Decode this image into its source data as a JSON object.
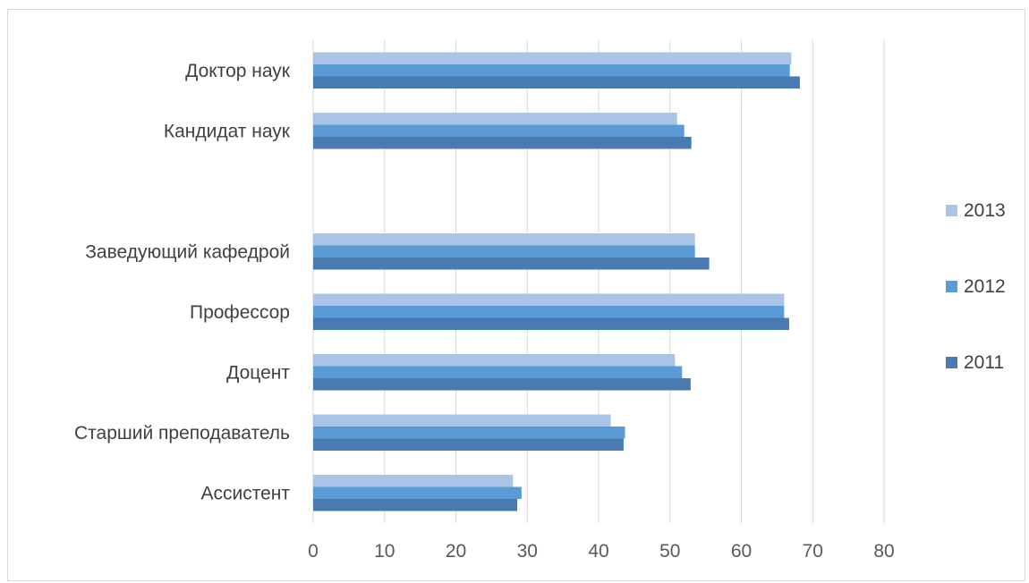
{
  "chart_data": {
    "type": "bar",
    "orientation": "horizontal",
    "categories": [
      "Доктор наук",
      "Кандидат наук",
      "",
      "Заведующий кафедрой",
      "Профессор",
      "Доцент",
      "Старший преподаватель",
      "Ассистент"
    ],
    "series": [
      {
        "name": "2013",
        "color": "#a9c4e4",
        "values": [
          67.0,
          51.0,
          null,
          53.5,
          66.0,
          50.7,
          41.7,
          28.0
        ]
      },
      {
        "name": "2012",
        "color": "#5b9bd5",
        "values": [
          66.8,
          52.0,
          null,
          53.5,
          66.0,
          51.7,
          43.7,
          29.2
        ]
      },
      {
        "name": "2011",
        "color": "#4a7ab2",
        "values": [
          68.2,
          53.0,
          null,
          55.5,
          66.7,
          52.9,
          43.5,
          28.6
        ]
      }
    ],
    "xlim": [
      0,
      80
    ],
    "x_ticks": [
      "0",
      "10",
      "20",
      "30",
      "40",
      "50",
      "60",
      "70",
      "80"
    ],
    "grid": "vertical",
    "legend_position": "right",
    "legend_order": [
      "2013",
      "2012",
      "2011"
    ],
    "title": "",
    "xlabel": "",
    "ylabel": ""
  }
}
